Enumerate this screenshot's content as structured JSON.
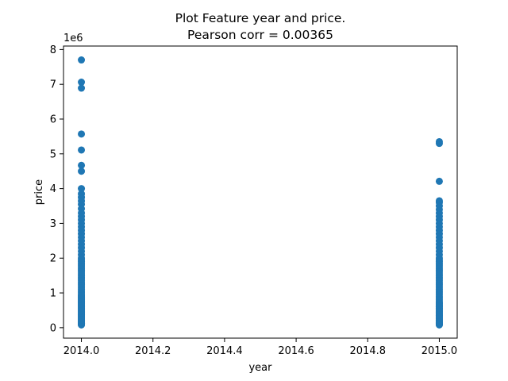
{
  "chart_data": {
    "type": "scatter",
    "title": [
      "Plot Feature year and price.",
      "Pearson corr = 0.00365"
    ],
    "xlabel": "year",
    "ylabel": "price",
    "y_offset_label": "1e6",
    "xlim": [
      2013.95,
      2015.05
    ],
    "ylim": [
      -0.3,
      8.1
    ],
    "x_ticks": [
      2014.0,
      2014.2,
      2014.4,
      2014.6,
      2014.8,
      2015.0
    ],
    "x_tick_labels": [
      "2014.0",
      "2014.2",
      "2014.4",
      "2014.6",
      "2014.8",
      "2015.0"
    ],
    "y_ticks": [
      0,
      1,
      2,
      3,
      4,
      5,
      6,
      7,
      8
    ],
    "y_tick_labels": [
      "0",
      "1",
      "2",
      "3",
      "4",
      "5",
      "6",
      "7",
      "8"
    ],
    "grid": false,
    "marker_color": "#1f77b4",
    "series": [
      {
        "x": [
          2014,
          2014,
          2014,
          2014,
          2014,
          2014,
          2014,
          2014,
          2014,
          2014,
          2014,
          2014,
          2014,
          2014,
          2014,
          2014,
          2014,
          2014,
          2014,
          2014,
          2014,
          2014,
          2014,
          2014,
          2014,
          2014,
          2014,
          2014,
          2014,
          2014,
          2014,
          2014,
          2014,
          2014,
          2014,
          2014,
          2014,
          2014,
          2014,
          2014,
          2014,
          2014,
          2014,
          2014,
          2014,
          2014,
          2014,
          2014,
          2014,
          2014,
          2014,
          2014,
          2014,
          2014,
          2014,
          2014,
          2014,
          2014,
          2014,
          2014,
          2014,
          2014,
          2014,
          2014,
          2014,
          2014,
          2014,
          2014,
          2014,
          2014,
          2014,
          2014,
          2014,
          2014,
          2014,
          2014,
          2014,
          2014,
          2014,
          2014,
          2014,
          2014,
          2014,
          2014,
          2014,
          2014,
          2014
        ],
        "values": [
          7.7,
          7.06,
          6.89,
          5.57,
          5.11,
          4.67,
          4.5,
          4.0,
          3.85,
          3.75,
          3.65,
          3.55,
          3.42,
          3.3,
          3.2,
          3.1,
          3.0,
          2.9,
          2.8,
          2.7,
          2.6,
          2.5,
          2.4,
          2.3,
          2.2,
          2.1,
          2.0,
          1.95,
          1.9,
          1.85,
          1.8,
          1.75,
          1.7,
          1.65,
          1.6,
          1.55,
          1.5,
          1.45,
          1.4,
          1.35,
          1.3,
          1.25,
          1.2,
          1.15,
          1.1,
          1.05,
          1.0,
          0.95,
          0.9,
          0.85,
          0.8,
          0.75,
          0.7,
          0.65,
          0.6,
          0.55,
          0.5,
          0.45,
          0.4,
          0.35,
          0.3,
          0.25,
          0.2,
          0.15,
          0.12,
          0.1,
          0.08,
          0.09,
          0.11,
          0.13,
          0.16,
          0.18,
          0.22,
          0.27,
          0.32,
          0.37,
          0.42,
          0.47,
          0.52,
          0.57,
          0.62,
          0.67,
          0.72,
          0.77,
          0.82,
          0.87,
          0.92
        ]
      },
      {
        "x": [
          2015,
          2015,
          2015,
          2015,
          2015,
          2015,
          2015,
          2015,
          2015,
          2015,
          2015,
          2015,
          2015,
          2015,
          2015,
          2015,
          2015,
          2015,
          2015,
          2015,
          2015,
          2015,
          2015,
          2015,
          2015,
          2015,
          2015,
          2015,
          2015,
          2015,
          2015,
          2015,
          2015,
          2015,
          2015,
          2015,
          2015,
          2015,
          2015,
          2015,
          2015,
          2015,
          2015,
          2015,
          2015,
          2015,
          2015,
          2015,
          2015,
          2015,
          2015,
          2015,
          2015,
          2015,
          2015,
          2015,
          2015,
          2015,
          2015,
          2015,
          2015,
          2015,
          2015,
          2015,
          2015,
          2015,
          2015,
          2015,
          2015,
          2015,
          2015,
          2015,
          2015,
          2015,
          2015,
          2015
        ],
        "values": [
          5.35,
          5.3,
          4.21,
          3.65,
          3.6,
          3.5,
          3.4,
          3.3,
          3.2,
          3.1,
          3.0,
          2.9,
          2.8,
          2.7,
          2.6,
          2.5,
          2.4,
          2.3,
          2.2,
          2.1,
          2.0,
          1.95,
          1.9,
          1.85,
          1.8,
          1.75,
          1.7,
          1.65,
          1.6,
          1.55,
          1.5,
          1.45,
          1.4,
          1.35,
          1.3,
          1.25,
          1.2,
          1.15,
          1.1,
          1.05,
          1.0,
          0.95,
          0.9,
          0.85,
          0.8,
          0.75,
          0.7,
          0.65,
          0.6,
          0.55,
          0.5,
          0.45,
          0.4,
          0.35,
          0.3,
          0.25,
          0.2,
          0.15,
          0.12,
          0.1,
          0.08,
          0.09,
          0.11,
          0.14,
          0.17,
          0.21,
          0.26,
          0.31,
          0.36,
          0.41,
          0.46,
          0.51,
          0.56,
          0.61,
          0.66,
          0.71
        ]
      }
    ]
  }
}
